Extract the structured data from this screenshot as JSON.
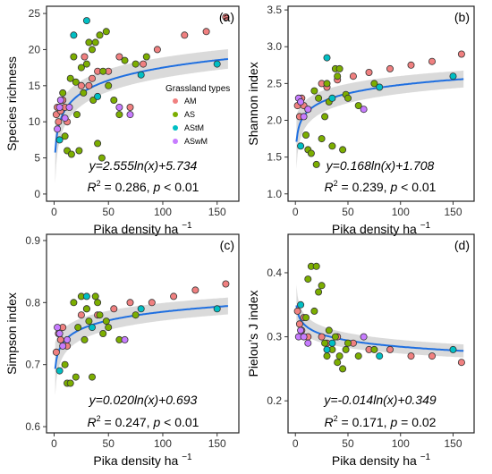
{
  "colors": {
    "AM": "#f08080",
    "AS": "#7cae00",
    "AStM": "#00bfc4",
    "ASwM": "#c77cff",
    "fit": "#1f6fe0",
    "band": "#d3d3d3"
  },
  "legend": {
    "title": "Grassland types",
    "items": [
      "AM",
      "AS",
      "AStM",
      "ASwM"
    ]
  },
  "chart_data": [
    {
      "type": "scatter",
      "panel": "(a)",
      "xlabel": "Pika density ha",
      "xlabel_sup": "−1",
      "ylabel": "Species richness",
      "xlim": [
        -7,
        170
      ],
      "ylim": [
        -1,
        26
      ],
      "xticks": [
        0,
        50,
        100,
        150
      ],
      "yticks": [
        0,
        5,
        10,
        15,
        20,
        25
      ],
      "ytick_labels": [
        "0",
        "5",
        "10",
        "15",
        "20",
        "25"
      ],
      "equation": "y=2.555ln(x)+5.734",
      "r2_label": "R",
      "r2_rest": " = 0.286, p < 0.01",
      "fit": {
        "a": 2.555,
        "b": 5.734,
        "x0": 1
      },
      "band_halfwidth": 2.0,
      "series": [
        {
          "name": "AM",
          "points": [
            [
              2,
              11
            ],
            [
              3,
              12
            ],
            [
              4,
              10
            ],
            [
              6,
              11.5
            ],
            [
              8,
              13
            ],
            [
              10,
              12
            ],
            [
              12,
              10
            ],
            [
              25,
              15
            ],
            [
              28,
              19
            ],
            [
              32,
              15
            ],
            [
              35,
              16
            ],
            [
              40,
              17
            ],
            [
              50,
              17
            ],
            [
              60,
              19
            ],
            [
              70,
              12
            ],
            [
              82,
              18
            ],
            [
              95,
              20
            ],
            [
              120,
              22
            ],
            [
              140,
              22.5
            ],
            [
              158,
              24.5
            ]
          ]
        },
        {
          "name": "AS",
          "points": [
            [
              8,
              14
            ],
            [
              10,
              8
            ],
            [
              12,
              6
            ],
            [
              15,
              16
            ],
            [
              16,
              5.5
            ],
            [
              18,
              19
            ],
            [
              20,
              15.5
            ],
            [
              21,
              11
            ],
            [
              23,
              6
            ],
            [
              25,
              17.5
            ],
            [
              27,
              14
            ],
            [
              30,
              18
            ],
            [
              32,
              21
            ],
            [
              35,
              20
            ],
            [
              36,
              13
            ],
            [
              38,
              21
            ],
            [
              40,
              7
            ],
            [
              42,
              22
            ],
            [
              44,
              5
            ],
            [
              45,
              17
            ],
            [
              48,
              22.5
            ],
            [
              50,
              15
            ],
            [
              55,
              13
            ],
            [
              60,
              11
            ],
            [
              65,
              18.5
            ],
            [
              75,
              18
            ],
            [
              85,
              19
            ]
          ]
        },
        {
          "name": "AStM",
          "points": [
            [
              5,
              7.5
            ],
            [
              18,
              22
            ],
            [
              30,
              24
            ],
            [
              40,
              13.5
            ],
            [
              80,
              16.5
            ],
            [
              150,
              18
            ]
          ]
        },
        {
          "name": "ASwM",
          "points": [
            [
              3,
              9
            ],
            [
              5,
              12
            ],
            [
              6,
              13
            ],
            [
              10,
              10.5
            ],
            [
              14,
              12
            ],
            [
              60,
              12
            ],
            [
              70,
              11
            ]
          ]
        }
      ]
    },
    {
      "type": "scatter",
      "panel": "(b)",
      "xlabel": "Pika density ha",
      "xlabel_sup": "−1",
      "ylabel": "Shannon index",
      "xlim": [
        -7,
        170
      ],
      "ylim": [
        0.9,
        3.55
      ],
      "xticks": [
        0,
        50,
        100,
        150
      ],
      "yticks": [
        1.0,
        1.5,
        2.0,
        2.5,
        3.0,
        3.5
      ],
      "ytick_labels": [
        "1.0",
        "1.5",
        "2.0",
        "2.5",
        "3.0",
        "3.5"
      ],
      "equation": "y=0.168ln(x)+1.708",
      "r2_label": "R",
      "r2_rest": " = 0.239, p < 0.01",
      "fit": {
        "a": 0.168,
        "b": 1.708,
        "x0": 1
      },
      "band_halfwidth": 0.17,
      "series": [
        {
          "name": "AM",
          "points": [
            [
              2,
              2.2
            ],
            [
              4,
              2.05
            ],
            [
              6,
              2.3
            ],
            [
              8,
              2.2
            ],
            [
              12,
              2.15
            ],
            [
              25,
              2.5
            ],
            [
              30,
              2.45
            ],
            [
              40,
              2.55
            ],
            [
              55,
              2.6
            ],
            [
              70,
              2.65
            ],
            [
              90,
              2.7
            ],
            [
              110,
              2.75
            ],
            [
              130,
              2.8
            ],
            [
              158,
              2.9
            ]
          ]
        },
        {
          "name": "AS",
          "points": [
            [
              10,
              1.8
            ],
            [
              12,
              1.6
            ],
            [
              15,
              1.55
            ],
            [
              18,
              2.4
            ],
            [
              20,
              1.4
            ],
            [
              22,
              2.3
            ],
            [
              25,
              1.75
            ],
            [
              28,
              2.05
            ],
            [
              30,
              2.5
            ],
            [
              32,
              2.25
            ],
            [
              35,
              1.65
            ],
            [
              38,
              2.7
            ],
            [
              40,
              2.6
            ],
            [
              42,
              2.7
            ],
            [
              45,
              1.6
            ],
            [
              48,
              2.35
            ],
            [
              50,
              2.3
            ],
            [
              60,
              2.2
            ],
            [
              75,
              2.5
            ]
          ]
        },
        {
          "name": "AStM",
          "points": [
            [
              5,
              1.65
            ],
            [
              30,
              2.85
            ],
            [
              35,
              2.3
            ],
            [
              80,
              2.45
            ],
            [
              150,
              2.6
            ]
          ]
        },
        {
          "name": "ASwM",
          "points": [
            [
              3,
              2.3
            ],
            [
              5,
              2.25
            ],
            [
              8,
              2.05
            ],
            [
              12,
              2.15
            ],
            [
              65,
              2.15
            ]
          ]
        }
      ]
    },
    {
      "type": "scatter",
      "panel": "(c)",
      "xlabel": "Pika density ha",
      "xlabel_sup": "−1",
      "ylabel": "Simpson index",
      "xlim": [
        -7,
        170
      ],
      "ylim": [
        0.59,
        0.91
      ],
      "xticks": [
        0,
        50,
        100,
        150
      ],
      "yticks": [
        0.6,
        0.7,
        0.8,
        0.9
      ],
      "ytick_labels": [
        "0.6",
        "0.7",
        "0.8",
        "0.9"
      ],
      "equation": "y=0.020ln(x)+0.693",
      "r2_label": "R",
      "r2_rest": " = 0.247, p < 0.01",
      "fit": {
        "a": 0.02,
        "b": 0.693,
        "x0": 1
      },
      "band_halfwidth": 0.02,
      "series": [
        {
          "name": "AM",
          "points": [
            [
              2,
              0.72
            ],
            [
              4,
              0.75
            ],
            [
              6,
              0.74
            ],
            [
              8,
              0.76
            ],
            [
              12,
              0.73
            ],
            [
              25,
              0.78
            ],
            [
              30,
              0.79
            ],
            [
              40,
              0.78
            ],
            [
              55,
              0.79
            ],
            [
              70,
              0.8
            ],
            [
              90,
              0.8
            ],
            [
              110,
              0.81
            ],
            [
              130,
              0.82
            ],
            [
              158,
              0.83
            ]
          ]
        },
        {
          "name": "AS",
          "points": [
            [
              10,
              0.7
            ],
            [
              12,
              0.67
            ],
            [
              15,
              0.67
            ],
            [
              18,
              0.8
            ],
            [
              20,
              0.68
            ],
            [
              22,
              0.76
            ],
            [
              25,
              0.81
            ],
            [
              28,
              0.74
            ],
            [
              30,
              0.79
            ],
            [
              32,
              0.77
            ],
            [
              35,
              0.68
            ],
            [
              38,
              0.81
            ],
            [
              40,
              0.8
            ],
            [
              42,
              0.78
            ],
            [
              45,
              0.75
            ],
            [
              48,
              0.77
            ],
            [
              50,
              0.76
            ],
            [
              60,
              0.74
            ],
            [
              75,
              0.78
            ]
          ]
        },
        {
          "name": "AStM",
          "points": [
            [
              5,
              0.69
            ],
            [
              30,
              0.81
            ],
            [
              35,
              0.76
            ],
            [
              80,
              0.79
            ],
            [
              150,
              0.79
            ]
          ]
        },
        {
          "name": "ASwM",
          "points": [
            [
              3,
              0.76
            ],
            [
              5,
              0.75
            ],
            [
              8,
              0.73
            ],
            [
              12,
              0.74
            ],
            [
              65,
              0.74
            ]
          ]
        }
      ]
    },
    {
      "type": "scatter",
      "panel": "(d)",
      "xlabel": "Pika density ha",
      "xlabel_sup": "−1",
      "ylabel": "Pielou’s J index",
      "xlim": [
        -7,
        170
      ],
      "ylim": [
        0.15,
        0.46
      ],
      "xticks": [
        0,
        50,
        100,
        150
      ],
      "yticks": [
        0.2,
        0.3,
        0.4
      ],
      "ytick_labels": [
        "0.2",
        "0.3",
        "0.4"
      ],
      "equation": "y=-0.014ln(x)+0.349",
      "r2_label": "R",
      "r2_rest": " = 0.171, p = 0.02",
      "fit": {
        "a": -0.014,
        "b": 0.349,
        "x0": 1
      },
      "band_halfwidth": 0.015,
      "series": [
        {
          "name": "AM",
          "points": [
            [
              2,
              0.34
            ],
            [
              4,
              0.32
            ],
            [
              6,
              0.31
            ],
            [
              8,
              0.33
            ],
            [
              12,
              0.3
            ],
            [
              25,
              0.3
            ],
            [
              30,
              0.29
            ],
            [
              40,
              0.3
            ],
            [
              55,
              0.29
            ],
            [
              70,
              0.28
            ],
            [
              90,
              0.28
            ],
            [
              110,
              0.27
            ],
            [
              130,
              0.27
            ],
            [
              158,
              0.26
            ]
          ]
        },
        {
          "name": "AS",
          "points": [
            [
              10,
              0.33
            ],
            [
              12,
              0.39
            ],
            [
              15,
              0.41
            ],
            [
              18,
              0.34
            ],
            [
              20,
              0.41
            ],
            [
              22,
              0.37
            ],
            [
              25,
              0.38
            ],
            [
              28,
              0.29
            ],
            [
              30,
              0.27
            ],
            [
              32,
              0.31
            ],
            [
              35,
              0.28
            ],
            [
              38,
              0.3
            ],
            [
              40,
              0.26
            ],
            [
              42,
              0.27
            ],
            [
              45,
              0.25
            ],
            [
              48,
              0.28
            ],
            [
              50,
              0.29
            ],
            [
              60,
              0.27
            ],
            [
              75,
              0.28
            ]
          ]
        },
        {
          "name": "AStM",
          "points": [
            [
              5,
              0.35
            ],
            [
              30,
              0.28
            ],
            [
              35,
              0.29
            ],
            [
              80,
              0.27
            ],
            [
              150,
              0.28
            ]
          ]
        },
        {
          "name": "ASwM",
          "points": [
            [
              3,
              0.3
            ],
            [
              5,
              0.31
            ],
            [
              8,
              0.3
            ],
            [
              12,
              0.29
            ],
            [
              65,
              0.3
            ]
          ]
        }
      ]
    }
  ]
}
